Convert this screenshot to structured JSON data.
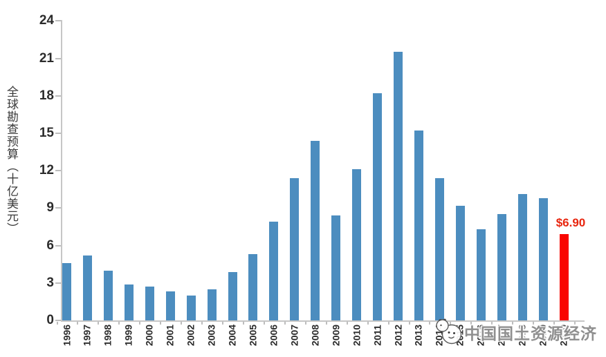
{
  "chart_data": {
    "type": "bar",
    "title": "",
    "ylabel": "全球勘查预算（十亿美元）",
    "xlabel": "",
    "categories": [
      "1996",
      "1997",
      "1998",
      "1999",
      "2000",
      "2001",
      "2002",
      "2003",
      "2004",
      "2005",
      "2006",
      "2007",
      "2008",
      "2009",
      "2010",
      "2011",
      "2012",
      "2013",
      "2014",
      "2015",
      "2016",
      "2017",
      "2018",
      "2019",
      "2020"
    ],
    "values": [
      4.6,
      5.2,
      4.0,
      2.9,
      2.7,
      2.3,
      2.0,
      2.5,
      3.9,
      5.3,
      7.9,
      11.4,
      14.4,
      8.4,
      12.1,
      18.2,
      21.5,
      15.2,
      11.4,
      9.2,
      7.3,
      8.5,
      10.1,
      9.8,
      6.9
    ],
    "ylim": [
      0,
      24
    ],
    "yticks": [
      0,
      3,
      6,
      9,
      12,
      15,
      18,
      21,
      24
    ],
    "grid": false,
    "legend": false,
    "bar_color": "#4c8dbf",
    "highlight": {
      "category": "2020",
      "value": 6.9,
      "label": "$6.90",
      "bar_color": "#f90600",
      "label_color": "#e8250e"
    }
  },
  "watermark": {
    "text": "中国国土资源经济",
    "logo": "cartoon-animal-face-icon"
  }
}
